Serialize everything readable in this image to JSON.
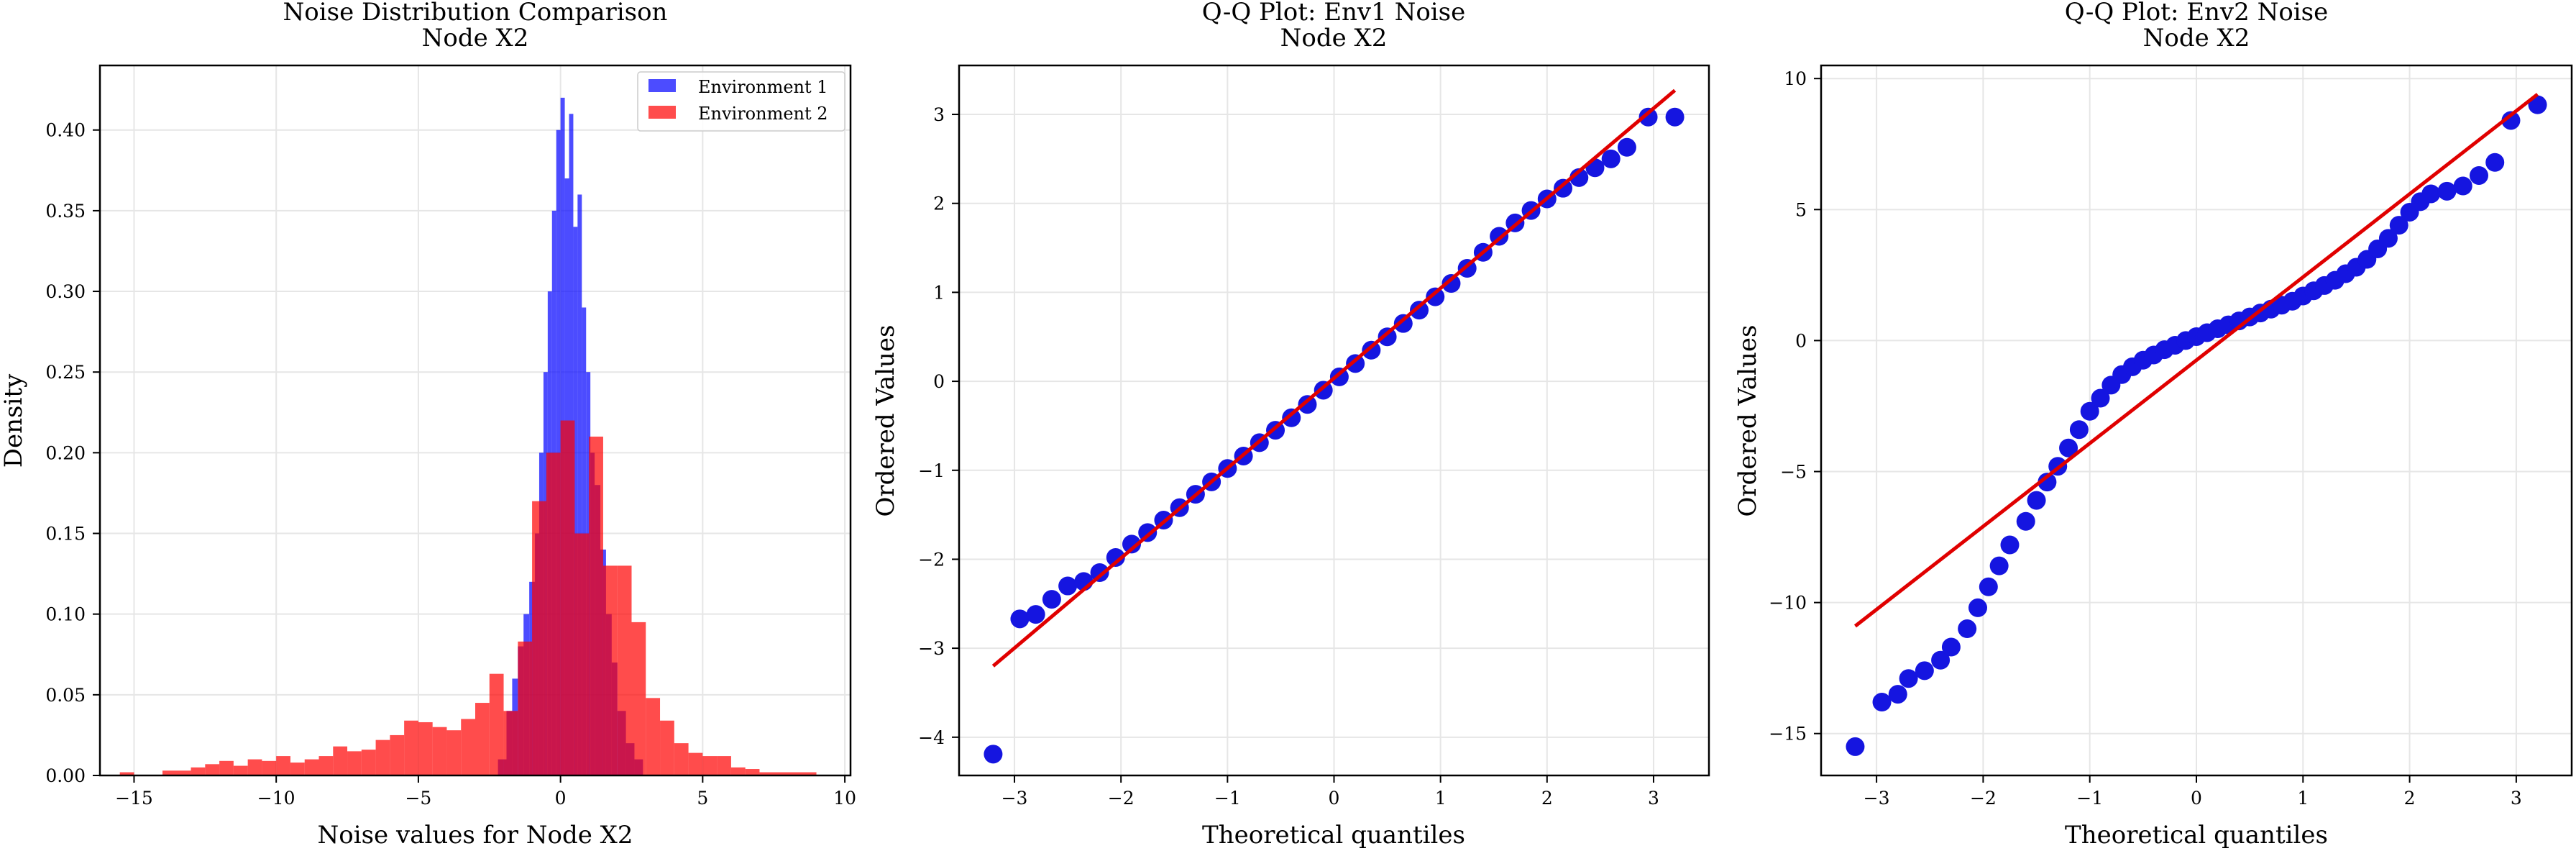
{
  "colors": {
    "env1": "#0000ff",
    "env2": "#ff0000",
    "overlap": "#cc1464",
    "fit_line": "#e00000",
    "grid": "#e6e6e6",
    "points": "#1515e0"
  },
  "chart_data": [
    {
      "type": "histogram",
      "title": "Noise Distribution Comparison",
      "subtitle": "Node X2",
      "xlabel": "Noise values for Node X2",
      "ylabel": "Density",
      "xlim": [
        -16.2,
        10.2
      ],
      "ylim": [
        0,
        0.44
      ],
      "xticks": [
        -15,
        -10,
        -5,
        0,
        5,
        10
      ],
      "xtick_labels": [
        "−15",
        "−10",
        "−5",
        "0",
        "5",
        "10"
      ],
      "yticks": [
        0,
        0.05,
        0.1,
        0.15,
        0.2,
        0.25,
        0.3,
        0.35,
        0.4
      ],
      "ytick_labels": [
        "0.00",
        "0.05",
        "0.10",
        "0.15",
        "0.20",
        "0.25",
        "0.30",
        "0.35",
        "0.40"
      ],
      "grid": true,
      "legend_position": "top-right",
      "series": [
        {
          "name": "Environment 1",
          "color": "#0000ff",
          "alpha": 0.7,
          "bins": [
            [
              -2.2,
              -1.9,
              0.01
            ],
            [
              -1.9,
              -1.7,
              0.04
            ],
            [
              -1.7,
              -1.5,
              0.06
            ],
            [
              -1.5,
              -1.3,
              0.08
            ],
            [
              -1.3,
              -1.1,
              0.1
            ],
            [
              -1.1,
              -0.9,
              0.12
            ],
            [
              -0.9,
              -0.75,
              0.15
            ],
            [
              -0.75,
              -0.6,
              0.2
            ],
            [
              -0.6,
              -0.45,
              0.25
            ],
            [
              -0.45,
              -0.3,
              0.3
            ],
            [
              -0.3,
              -0.15,
              0.35
            ],
            [
              -0.15,
              0.0,
              0.4
            ],
            [
              0.0,
              0.15,
              0.42
            ],
            [
              0.15,
              0.3,
              0.37
            ],
            [
              0.3,
              0.45,
              0.41
            ],
            [
              0.45,
              0.6,
              0.34
            ],
            [
              0.6,
              0.75,
              0.36
            ],
            [
              0.75,
              0.9,
              0.29
            ],
            [
              0.9,
              1.05,
              0.25
            ],
            [
              1.05,
              1.2,
              0.2
            ],
            [
              1.2,
              1.4,
              0.18
            ],
            [
              1.4,
              1.6,
              0.14
            ],
            [
              1.6,
              1.8,
              0.1
            ],
            [
              1.8,
              2.0,
              0.07
            ],
            [
              2.0,
              2.3,
              0.04
            ],
            [
              2.3,
              2.6,
              0.02
            ],
            [
              2.6,
              2.9,
              0.01
            ]
          ]
        },
        {
          "name": "Environment 2",
          "color": "#ff0000",
          "alpha": 0.7,
          "bins": [
            [
              -15.5,
              -15.0,
              0.002
            ],
            [
              -15.0,
              -14.0,
              0.0
            ],
            [
              -14.0,
              -13.0,
              0.003
            ],
            [
              -13.0,
              -12.5,
              0.005
            ],
            [
              -12.5,
              -12.0,
              0.007
            ],
            [
              -12.0,
              -11.5,
              0.009
            ],
            [
              -11.5,
              -11.0,
              0.006
            ],
            [
              -11.0,
              -10.5,
              0.01
            ],
            [
              -10.5,
              -10.0,
              0.009
            ],
            [
              -10.0,
              -9.5,
              0.012
            ],
            [
              -9.5,
              -9.0,
              0.008
            ],
            [
              -9.0,
              -8.5,
              0.01
            ],
            [
              -8.5,
              -8.0,
              0.012
            ],
            [
              -8.0,
              -7.5,
              0.018
            ],
            [
              -7.5,
              -7.0,
              0.015
            ],
            [
              -7.0,
              -6.5,
              0.016
            ],
            [
              -6.5,
              -6.0,
              0.022
            ],
            [
              -6.0,
              -5.5,
              0.025
            ],
            [
              -5.5,
              -5.0,
              0.034
            ],
            [
              -5.0,
              -4.5,
              0.033
            ],
            [
              -4.5,
              -4.0,
              0.03
            ],
            [
              -4.0,
              -3.5,
              0.028
            ],
            [
              -3.5,
              -3.0,
              0.035
            ],
            [
              -3.0,
              -2.5,
              0.045
            ],
            [
              -2.5,
              -2.0,
              0.063
            ],
            [
              -2.0,
              -1.5,
              0.04
            ],
            [
              -1.5,
              -1.0,
              0.083
            ],
            [
              -1.0,
              -0.5,
              0.17
            ],
            [
              -0.5,
              0.0,
              0.2
            ],
            [
              0.0,
              0.5,
              0.22
            ],
            [
              0.5,
              1.0,
              0.15
            ],
            [
              1.0,
              1.5,
              0.21
            ],
            [
              1.5,
              2.0,
              0.13
            ],
            [
              2.0,
              2.5,
              0.13
            ],
            [
              2.5,
              3.0,
              0.095
            ],
            [
              3.0,
              3.5,
              0.048
            ],
            [
              3.5,
              4.0,
              0.034
            ],
            [
              4.0,
              4.5,
              0.02
            ],
            [
              4.5,
              5.0,
              0.014
            ],
            [
              5.0,
              5.5,
              0.012
            ],
            [
              5.5,
              6.0,
              0.012
            ],
            [
              6.0,
              6.5,
              0.005
            ],
            [
              6.5,
              7.0,
              0.004
            ],
            [
              7.0,
              8.0,
              0.002
            ],
            [
              8.0,
              9.0,
              0.002
            ]
          ]
        }
      ]
    },
    {
      "type": "scatter",
      "title": "Q-Q Plot: Env1 Noise",
      "subtitle": "Node X2",
      "xlabel": "Theoretical quantiles",
      "ylabel": "Ordered Values",
      "xlim": [
        -3.52,
        3.52
      ],
      "ylim": [
        -4.43,
        3.55
      ],
      "xticks": [
        -3,
        -2,
        -1,
        0,
        1,
        2,
        3
      ],
      "xtick_labels": [
        "−3",
        "−2",
        "−1",
        "0",
        "1",
        "2",
        "3"
      ],
      "yticks": [
        -4,
        -3,
        -2,
        -1,
        0,
        1,
        2,
        3
      ],
      "ytick_labels": [
        "−4",
        "−3",
        "−2",
        "−1",
        "0",
        "1",
        "2",
        "3"
      ],
      "grid": true,
      "fit_line": {
        "x": [
          -3.2,
          3.2
        ],
        "y": [
          -3.2,
          3.27
        ]
      },
      "points": [
        [
          -3.2,
          -4.19
        ],
        [
          -2.95,
          -2.67
        ],
        [
          -2.8,
          -2.62
        ],
        [
          -2.65,
          -2.45
        ],
        [
          -2.5,
          -2.3
        ],
        [
          -2.35,
          -2.25
        ],
        [
          -2.2,
          -2.15
        ],
        [
          -2.05,
          -1.98
        ],
        [
          -1.9,
          -1.83
        ],
        [
          -1.75,
          -1.7
        ],
        [
          -1.6,
          -1.56
        ],
        [
          -1.45,
          -1.42
        ],
        [
          -1.3,
          -1.27
        ],
        [
          -1.15,
          -1.13
        ],
        [
          -1.0,
          -0.98
        ],
        [
          -0.85,
          -0.84
        ],
        [
          -0.7,
          -0.69
        ],
        [
          -0.55,
          -0.55
        ],
        [
          -0.4,
          -0.41
        ],
        [
          -0.25,
          -0.26
        ],
        [
          -0.1,
          -0.1
        ],
        [
          0.05,
          0.05
        ],
        [
          0.2,
          0.2
        ],
        [
          0.35,
          0.35
        ],
        [
          0.5,
          0.5
        ],
        [
          0.65,
          0.65
        ],
        [
          0.8,
          0.8
        ],
        [
          0.95,
          0.95
        ],
        [
          1.1,
          1.1
        ],
        [
          1.25,
          1.27
        ],
        [
          1.4,
          1.45
        ],
        [
          1.55,
          1.63
        ],
        [
          1.7,
          1.78
        ],
        [
          1.85,
          1.92
        ],
        [
          2.0,
          2.05
        ],
        [
          2.15,
          2.17
        ],
        [
          2.3,
          2.29
        ],
        [
          2.45,
          2.4
        ],
        [
          2.6,
          2.5
        ],
        [
          2.75,
          2.63
        ],
        [
          2.95,
          2.97
        ],
        [
          3.2,
          2.97
        ]
      ]
    },
    {
      "type": "scatter",
      "title": "Q-Q Plot: Env2 Noise",
      "subtitle": "Node X2",
      "xlabel": "Theoretical quantiles",
      "ylabel": "Ordered Values",
      "xlim": [
        -3.52,
        3.52
      ],
      "ylim": [
        -16.6,
        10.5
      ],
      "xticks": [
        -3,
        -2,
        -1,
        0,
        1,
        2,
        3
      ],
      "xtick_labels": [
        "−3",
        "−2",
        "−1",
        "0",
        "1",
        "2",
        "3"
      ],
      "yticks": [
        -15,
        -10,
        -5,
        0,
        5,
        10
      ],
      "ytick_labels": [
        "−15",
        "−10",
        "−5",
        "0",
        "5",
        "10"
      ],
      "grid": true,
      "fit_line": {
        "x": [
          -3.2,
          3.2
        ],
        "y": [
          -10.9,
          9.4
        ]
      },
      "points": [
        [
          -3.2,
          -15.5
        ],
        [
          -2.95,
          -13.8
        ],
        [
          -2.8,
          -13.5
        ],
        [
          -2.7,
          -12.9
        ],
        [
          -2.55,
          -12.6
        ],
        [
          -2.4,
          -12.2
        ],
        [
          -2.3,
          -11.7
        ],
        [
          -2.15,
          -11.0
        ],
        [
          -2.05,
          -10.2
        ],
        [
          -1.95,
          -9.4
        ],
        [
          -1.85,
          -8.6
        ],
        [
          -1.75,
          -7.8
        ],
        [
          -1.6,
          -6.9
        ],
        [
          -1.5,
          -6.1
        ],
        [
          -1.4,
          -5.4
        ],
        [
          -1.3,
          -4.8
        ],
        [
          -1.2,
          -4.1
        ],
        [
          -1.1,
          -3.4
        ],
        [
          -1.0,
          -2.7
        ],
        [
          -0.9,
          -2.2
        ],
        [
          -0.8,
          -1.7
        ],
        [
          -0.7,
          -1.3
        ],
        [
          -0.6,
          -1.0
        ],
        [
          -0.5,
          -0.75
        ],
        [
          -0.4,
          -0.55
        ],
        [
          -0.3,
          -0.35
        ],
        [
          -0.2,
          -0.18
        ],
        [
          -0.1,
          0.0
        ],
        [
          0.0,
          0.15
        ],
        [
          0.1,
          0.3
        ],
        [
          0.2,
          0.45
        ],
        [
          0.3,
          0.6
        ],
        [
          0.4,
          0.75
        ],
        [
          0.5,
          0.9
        ],
        [
          0.6,
          1.05
        ],
        [
          0.7,
          1.2
        ],
        [
          0.8,
          1.35
        ],
        [
          0.9,
          1.5
        ],
        [
          1.0,
          1.7
        ],
        [
          1.1,
          1.9
        ],
        [
          1.2,
          2.1
        ],
        [
          1.3,
          2.3
        ],
        [
          1.4,
          2.55
        ],
        [
          1.5,
          2.8
        ],
        [
          1.6,
          3.1
        ],
        [
          1.7,
          3.5
        ],
        [
          1.8,
          3.9
        ],
        [
          1.9,
          4.4
        ],
        [
          2.0,
          4.9
        ],
        [
          2.1,
          5.3
        ],
        [
          2.2,
          5.6
        ],
        [
          2.35,
          5.7
        ],
        [
          2.5,
          5.9
        ],
        [
          2.65,
          6.3
        ],
        [
          2.8,
          6.8
        ],
        [
          2.95,
          8.4
        ],
        [
          3.2,
          9.0
        ]
      ]
    }
  ]
}
